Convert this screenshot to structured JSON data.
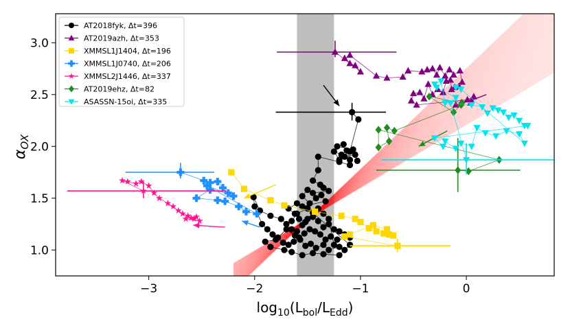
{
  "chart_data": {
    "type": "scatter",
    "xlabel": "log10(Lbol/LEdd)",
    "ylabel": "αOX",
    "xlim": [
      -3.88,
      0.83
    ],
    "ylim": [
      0.75,
      3.28
    ],
    "x_ticks": [
      -3,
      -2,
      -1,
      0
    ],
    "x_tick_labels": [
      "−3",
      "−2",
      "−1",
      "0"
    ],
    "y_ticks": [
      1.0,
      1.5,
      2.0,
      2.5,
      3.0
    ],
    "y_tick_labels": [
      "1.0",
      "1.5",
      "2.0",
      "2.5",
      "3.0"
    ],
    "shaded_band": {
      "x0": -1.6,
      "x1": -1.25,
      "color": "#bebebe"
    },
    "relation": {
      "slope": 0.79,
      "intercept": 2.48,
      "color": "#ff0000",
      "x_range": [
        -2.2,
        0.83
      ]
    },
    "legend": {
      "placement": "upper-left",
      "entries": [
        {
          "label": "AT2018fyk, Δt=396",
          "color": "#000000",
          "marker": "circle"
        },
        {
          "label": "AT2019azh, Δt=353",
          "color": "#800080",
          "marker": "triangle-up"
        },
        {
          "label": "XMMSL1J1404, Δt=196",
          "color": "#ffd700",
          "marker": "square"
        },
        {
          "label": "XMMSL1J0740, Δt=206",
          "color": "#1e90ff",
          "marker": "plus"
        },
        {
          "label": "XMMSL2J1446, Δt=337",
          "color": "#ff1493",
          "marker": "star"
        },
        {
          "label": "AT2019ehz, Δt=82",
          "color": "#228b22",
          "marker": "diamond"
        },
        {
          "label": "ASASSN-15oi, Δt=335",
          "color": "#00e5ee",
          "marker": "triangle-down"
        }
      ]
    },
    "series": [
      {
        "name": "AT2018fyk",
        "color": "#000000",
        "marker": "circle",
        "errorbar": {
          "x": -1.08,
          "y": 2.33,
          "xerr": [
            0.72,
            0.32
          ],
          "yerr": [
            0.08,
            0.09
          ]
        },
        "arrow_tip": [
          -1.2,
          2.39
        ],
        "points": [
          [
            -1.08,
            2.33
          ],
          [
            -1.02,
            2.26
          ],
          [
            -1.1,
            1.95
          ],
          [
            -1.1,
            1.87
          ],
          [
            -1.13,
            1.96
          ],
          [
            -1.18,
            1.92
          ],
          [
            -1.25,
            1.95
          ],
          [
            -1.2,
            1.87
          ],
          [
            -1.15,
            1.9
          ],
          [
            -1.05,
            1.92
          ],
          [
            -1.03,
            1.86
          ],
          [
            -1.07,
            1.97
          ],
          [
            -1.22,
            2.0
          ],
          [
            -1.16,
            2.02
          ],
          [
            -1.1,
            1.82
          ],
          [
            -1.2,
            1.85
          ],
          [
            -1.4,
            1.9
          ],
          [
            -1.4,
            1.77
          ],
          [
            -1.45,
            1.67
          ],
          [
            -1.38,
            1.63
          ],
          [
            -1.35,
            1.6
          ],
          [
            -1.3,
            1.57
          ],
          [
            -1.45,
            1.55
          ],
          [
            -1.5,
            1.58
          ],
          [
            -1.55,
            1.52
          ],
          [
            -1.48,
            1.45
          ],
          [
            -1.42,
            1.5
          ],
          [
            -1.37,
            1.53
          ],
          [
            -1.33,
            1.47
          ],
          [
            -1.55,
            1.42
          ],
          [
            -1.6,
            1.45
          ],
          [
            -1.68,
            1.4
          ],
          [
            -1.62,
            1.35
          ],
          [
            -1.58,
            1.3
          ],
          [
            -1.52,
            1.27
          ],
          [
            -1.45,
            1.32
          ],
          [
            -1.4,
            1.28
          ],
          [
            -1.35,
            1.22
          ],
          [
            -1.3,
            1.25
          ],
          [
            -1.25,
            1.2
          ],
          [
            -1.2,
            1.18
          ],
          [
            -1.15,
            1.15
          ],
          [
            -1.1,
            1.12
          ],
          [
            -1.22,
            1.1
          ],
          [
            -1.28,
            1.13
          ],
          [
            -1.33,
            1.1
          ],
          [
            -1.38,
            1.15
          ],
          [
            -1.43,
            1.18
          ],
          [
            -1.48,
            1.2
          ],
          [
            -1.53,
            1.16
          ],
          [
            -1.58,
            1.12
          ],
          [
            -1.63,
            1.08
          ],
          [
            -1.68,
            1.05
          ],
          [
            -1.73,
            1.07
          ],
          [
            -1.78,
            1.12
          ],
          [
            -1.83,
            1.15
          ],
          [
            -1.88,
            1.2
          ],
          [
            -1.93,
            1.25
          ],
          [
            -2.0,
            1.42
          ],
          [
            -2.01,
            1.51
          ],
          [
            -1.95,
            1.38
          ],
          [
            -1.85,
            1.33
          ],
          [
            -1.75,
            1.3
          ],
          [
            -1.7,
            1.25
          ],
          [
            -1.65,
            1.2
          ],
          [
            -1.6,
            1.18
          ],
          [
            -1.55,
            1.24
          ],
          [
            -1.5,
            1.3
          ],
          [
            -1.45,
            1.36
          ],
          [
            -1.4,
            1.4
          ],
          [
            -1.35,
            1.35
          ],
          [
            -1.3,
            1.3
          ],
          [
            -1.25,
            1.05
          ],
          [
            -1.2,
            1.03
          ],
          [
            -1.3,
            1.0
          ],
          [
            -1.35,
            1.05
          ],
          [
            -1.42,
            1.02
          ],
          [
            -1.47,
            1.06
          ],
          [
            -1.52,
            1.04
          ],
          [
            -1.57,
            1.1
          ],
          [
            -1.62,
            1.14
          ],
          [
            -1.7,
            1.2
          ],
          [
            -1.8,
            1.1
          ],
          [
            -1.9,
            1.08
          ],
          [
            -1.85,
            1.03
          ],
          [
            -1.72,
            1.0
          ],
          [
            -1.65,
            0.98
          ],
          [
            -1.55,
            0.95
          ],
          [
            -1.45,
            0.97
          ],
          [
            -1.35,
            0.96
          ],
          [
            -1.2,
            0.95
          ],
          [
            -1.15,
            1.0
          ],
          [
            -1.1,
            1.05
          ],
          [
            -1.5,
            1.4
          ],
          [
            -1.6,
            1.35
          ],
          [
            -1.65,
            1.28
          ]
        ]
      },
      {
        "name": "AT2019azh",
        "color": "#800080",
        "marker": "triangle-up",
        "errorbar": {
          "x": -1.24,
          "y": 2.91,
          "xerr": [
            0.55,
            0.58
          ],
          "yerr": [
            0.05,
            0.11
          ]
        },
        "points": [
          [
            -1.24,
            2.91
          ],
          [
            -1.1,
            2.8
          ],
          [
            -1.05,
            2.78
          ],
          [
            -1.0,
            2.72
          ],
          [
            -1.15,
            2.85
          ],
          [
            -1.1,
            2.88
          ],
          [
            -0.85,
            2.68
          ],
          [
            -0.75,
            2.66
          ],
          [
            -0.6,
            2.67
          ],
          [
            -0.55,
            2.73
          ],
          [
            -0.42,
            2.72
          ],
          [
            -0.37,
            2.74
          ],
          [
            -0.32,
            2.75
          ],
          [
            -0.28,
            2.69
          ],
          [
            -0.25,
            2.76
          ],
          [
            -0.2,
            2.68
          ],
          [
            -0.16,
            2.74
          ],
          [
            -0.12,
            2.69
          ],
          [
            -0.06,
            2.73
          ],
          [
            -0.04,
            2.62
          ],
          [
            -0.07,
            2.58
          ],
          [
            -0.11,
            2.57
          ],
          [
            -0.14,
            2.55
          ],
          [
            -0.15,
            2.64
          ],
          [
            -0.19,
            2.63
          ],
          [
            -0.22,
            2.52
          ],
          [
            -0.27,
            2.55
          ],
          [
            -0.32,
            2.5
          ],
          [
            -0.36,
            2.6
          ],
          [
            -0.4,
            2.46
          ],
          [
            -0.44,
            2.52
          ],
          [
            -0.5,
            2.51
          ],
          [
            -0.52,
            2.44
          ],
          [
            -0.47,
            2.4
          ],
          [
            0.01,
            2.45
          ],
          [
            0.04,
            2.42
          ],
          [
            0.07,
            2.48
          ],
          [
            -0.05,
            2.42
          ],
          [
            -0.1,
            2.4
          ]
        ],
        "arrow_tip": [
          0.01,
          2.43
        ],
        "arrow_tail": [
          0.19,
          2.5
        ]
      },
      {
        "name": "XMMSL1J1404",
        "color": "#ffd700",
        "marker": "square",
        "errorbar": {
          "x": -0.65,
          "y": 1.04,
          "xerr": [
            0.45,
            0.5
          ],
          "yerr": [
            0.06,
            0.07
          ]
        },
        "arrow_tip": [
          -2.1,
          1.5
        ],
        "arrow_tail": [
          -1.8,
          1.63
        ],
        "points": [
          [
            -2.22,
            1.75
          ],
          [
            -2.1,
            1.59
          ],
          [
            -1.85,
            1.48
          ],
          [
            -1.72,
            1.43
          ],
          [
            -1.43,
            1.37
          ],
          [
            -1.18,
            1.33
          ],
          [
            -1.05,
            1.3
          ],
          [
            -1.0,
            1.27
          ],
          [
            -0.92,
            1.21
          ],
          [
            -0.85,
            1.18
          ],
          [
            -0.78,
            1.16
          ],
          [
            -0.73,
            1.15
          ],
          [
            -0.69,
            1.14
          ],
          [
            -0.75,
            1.2
          ],
          [
            -0.88,
            1.24
          ],
          [
            -1.1,
            1.15
          ],
          [
            -1.15,
            1.13
          ],
          [
            -0.65,
            1.04
          ]
        ]
      },
      {
        "name": "XMMSL1J0740",
        "color": "#1e90ff",
        "marker": "plus",
        "errorbar": {
          "x": -2.7,
          "y": 1.75,
          "xerr": [
            0.52,
            0.32
          ],
          "yerr": [
            0.06,
            0.09
          ]
        },
        "arrow_tip": [
          -2.12,
          1.28
        ],
        "arrow_tail": [
          -1.95,
          1.22
        ],
        "points": [
          [
            -2.7,
            1.75
          ],
          [
            -2.48,
            1.67
          ],
          [
            -2.42,
            1.65
          ],
          [
            -2.35,
            1.66
          ],
          [
            -2.3,
            1.6
          ],
          [
            -2.25,
            1.55
          ],
          [
            -2.42,
            1.58
          ],
          [
            -2.55,
            1.5
          ],
          [
            -2.35,
            1.48
          ],
          [
            -2.28,
            1.47
          ],
          [
            -2.15,
            1.42
          ],
          [
            -2.08,
            1.37
          ],
          [
            -1.98,
            1.35
          ],
          [
            -2.45,
            1.62
          ],
          [
            -2.2,
            1.52
          ]
        ]
      },
      {
        "name": "XMMSL2J1446",
        "color": "#ff1493",
        "marker": "star",
        "errorbar": {
          "x": -3.05,
          "y": 1.57,
          "xerr": [
            0.72,
            0.78
          ],
          "yerr": [
            0.07,
            0.09
          ]
        },
        "arrow_tip": [
          -2.58,
          1.24
        ],
        "arrow_tail": [
          -2.28,
          1.22
        ],
        "points": [
          [
            -3.05,
            1.57
          ],
          [
            -3.25,
            1.67
          ],
          [
            -3.2,
            1.66
          ],
          [
            -3.12,
            1.64
          ],
          [
            -3.07,
            1.66
          ],
          [
            -3.0,
            1.62
          ],
          [
            -2.95,
            1.55
          ],
          [
            -2.9,
            1.5
          ],
          [
            -2.82,
            1.45
          ],
          [
            -2.77,
            1.42
          ],
          [
            -2.72,
            1.38
          ],
          [
            -2.68,
            1.35
          ],
          [
            -2.63,
            1.33
          ],
          [
            -2.6,
            1.31
          ],
          [
            -2.57,
            1.3
          ],
          [
            -2.55,
            1.32
          ],
          [
            -2.52,
            1.28
          ],
          [
            -2.65,
            1.3
          ]
        ]
      },
      {
        "name": "AT2019ehz",
        "color": "#228b22",
        "marker": "diamond",
        "errorbar": {
          "x": -0.08,
          "y": 1.77,
          "xerr": [
            0.77,
            0.59
          ],
          "yerr": [
            0.21,
            0.31
          ]
        },
        "points": [
          [
            -0.08,
            1.77
          ],
          [
            0.02,
            1.76
          ],
          [
            0.31,
            1.87
          ],
          [
            -0.83,
            2.16
          ],
          [
            -0.83,
            1.99
          ],
          [
            -0.73,
            2.05
          ],
          [
            -0.75,
            2.18
          ],
          [
            -0.68,
            2.15
          ],
          [
            -0.05,
            2.4
          ],
          [
            -0.12,
            2.33
          ],
          [
            -0.35,
            2.48
          ],
          [
            -0.04,
            2.42
          ]
        ],
        "arrow_tip": [
          -0.45,
          2.0
        ],
        "arrow_tail": [
          -0.18,
          2.15
        ]
      },
      {
        "name": "ASASSN-15oi",
        "color": "#00e5ee",
        "marker": "triangle-down",
        "errorbar": {
          "x": 0.0,
          "y": 1.87,
          "xerr": [
            0.8,
            0.83
          ],
          "yerr": [
            0.14,
            0.16
          ]
        },
        "points": [
          [
            0.0,
            1.87
          ],
          [
            -0.15,
            2.42
          ],
          [
            -0.1,
            2.47
          ],
          [
            -0.28,
            2.57
          ],
          [
            -0.3,
            2.6
          ],
          [
            -0.24,
            2.63
          ],
          [
            -0.2,
            2.42
          ],
          [
            0.05,
            2.4
          ],
          [
            0.15,
            2.38
          ],
          [
            0.2,
            2.32
          ],
          [
            0.25,
            2.37
          ],
          [
            0.3,
            2.35
          ],
          [
            0.35,
            2.33
          ],
          [
            0.4,
            2.28
          ],
          [
            0.45,
            2.3
          ],
          [
            0.5,
            2.25
          ],
          [
            0.55,
            2.2
          ],
          [
            0.58,
            2.2
          ],
          [
            -0.3,
            2.08
          ],
          [
            -0.22,
            2.0
          ],
          [
            -0.2,
            2.05
          ],
          [
            -0.1,
            1.98
          ],
          [
            -0.05,
            2.03
          ],
          [
            0.05,
            2.0
          ],
          [
            0.1,
            2.18
          ],
          [
            0.18,
            2.13
          ],
          [
            0.28,
            2.1
          ],
          [
            0.38,
            2.15
          ],
          [
            0.5,
            2.12
          ],
          [
            0.55,
            2.03
          ],
          [
            -0.05,
            2.55
          ],
          [
            -0.1,
            2.57
          ]
        ]
      }
    ]
  }
}
